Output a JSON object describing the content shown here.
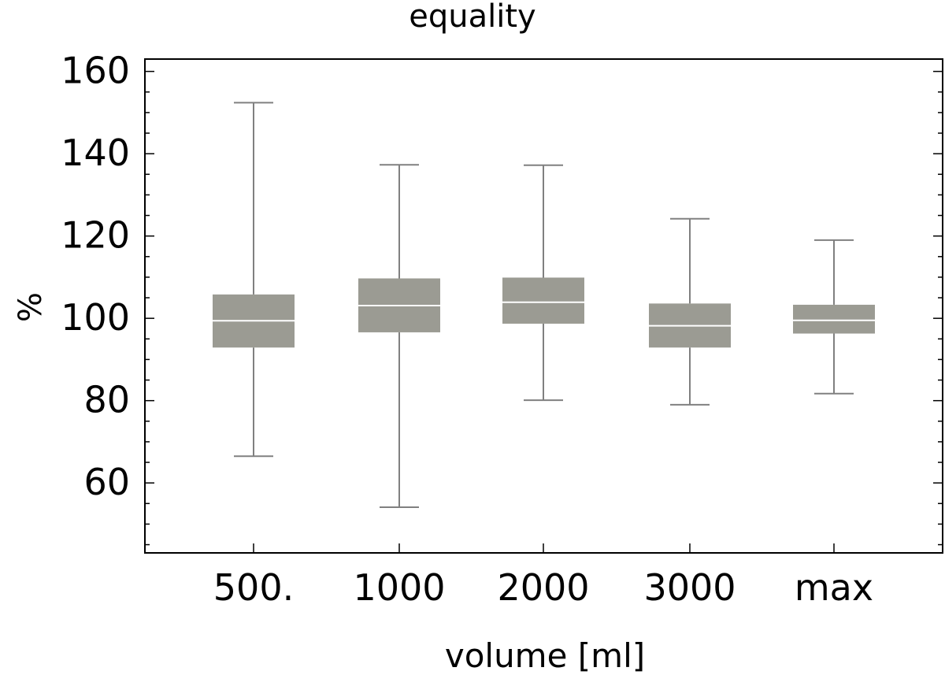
{
  "chart_data": {
    "type": "box",
    "title": "equality",
    "xlabel": "volume [ml]",
    "ylabel": "%",
    "categories": [
      "500.",
      "1000",
      "2000",
      "3000",
      "max"
    ],
    "ylim": [
      43,
      163
    ],
    "yticks": [
      60,
      80,
      100,
      120,
      140,
      160
    ],
    "y_minor_step": 5,
    "grid": false,
    "box_color": "#9b9b93",
    "whisker_color": "#808080",
    "median_color": "#ffffff",
    "boxes": [
      {
        "category": "500.",
        "min": 66.5,
        "q1": 92.9,
        "median": 99.4,
        "q3": 105.8,
        "max": 152.4
      },
      {
        "category": "1000",
        "min": 54.1,
        "q1": 96.6,
        "median": 103.1,
        "q3": 109.7,
        "max": 137.3
      },
      {
        "category": "2000",
        "min": 80.1,
        "q1": 98.7,
        "median": 103.9,
        "q3": 109.9,
        "max": 137.2
      },
      {
        "category": "3000",
        "min": 79.0,
        "q1": 92.9,
        "median": 98.2,
        "q3": 103.6,
        "max": 124.2
      },
      {
        "category": "max",
        "min": 81.7,
        "q1": 96.3,
        "median": 99.5,
        "q3": 103.3,
        "max": 119.0
      }
    ]
  }
}
